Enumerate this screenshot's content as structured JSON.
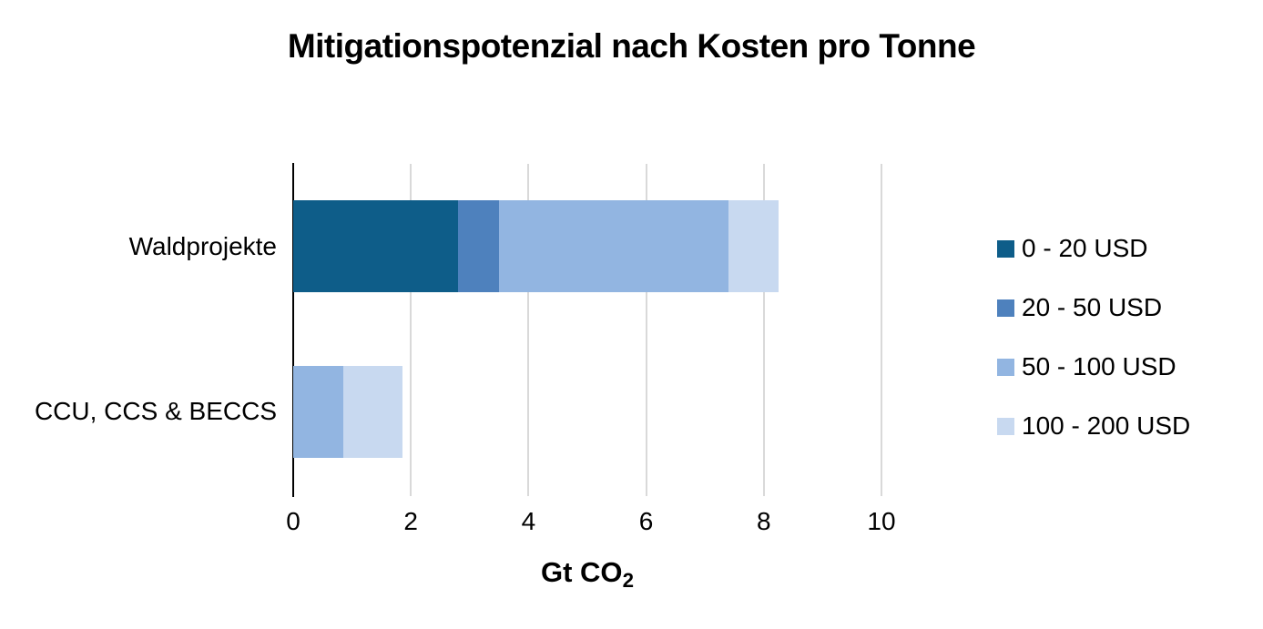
{
  "chart_data": {
    "type": "bar",
    "orientation": "horizontal-stacked",
    "title": "Mitigationspotenzial nach Kosten pro Tonne",
    "xlabel_main": "Gt CO",
    "xlabel_sub": "2",
    "categories": [
      "Waldprojekte",
      "CCU, CCS & BECCS"
    ],
    "series": [
      {
        "name": "0 - 20 USD",
        "color": "#0e5d89",
        "values": [
          2.8,
          0
        ]
      },
      {
        "name": "20 - 50 USD",
        "color": "#4e81bd",
        "values": [
          0.7,
          0
        ]
      },
      {
        "name": "50 - 100 USD",
        "color": "#92b5e1",
        "values": [
          3.9,
          0.85
        ]
      },
      {
        "name": "100 - 200 USD",
        "color": "#c8d9f0",
        "values": [
          0.85,
          1.0
        ]
      }
    ],
    "totals": [
      8.25,
      1.85
    ],
    "xlim": [
      0,
      10
    ],
    "xticks": [
      0,
      2,
      4,
      6,
      8,
      10
    ],
    "grid": "vertical",
    "gridline_color": "#d9d9d9",
    "axis_line_color": "#000000",
    "text_color": "#000000",
    "background_color": "#ffffff",
    "legend_position": "right"
  }
}
